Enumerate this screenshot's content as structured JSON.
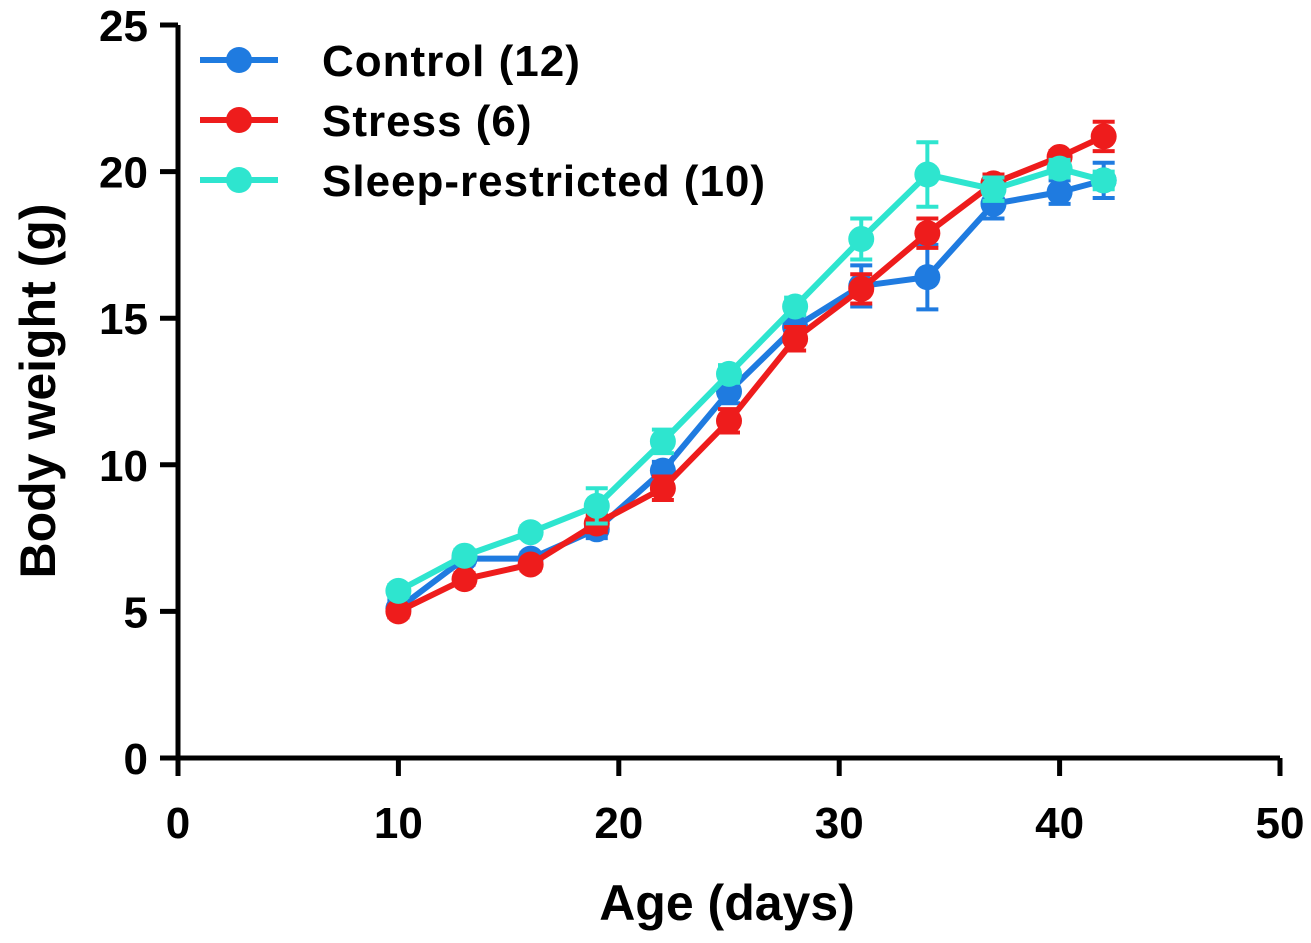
{
  "chart_data": {
    "type": "line",
    "title": "",
    "xlabel": "Age (days)",
    "ylabel": "Body weight (g)",
    "xlim": [
      0,
      50
    ],
    "ylim": [
      0,
      25
    ],
    "xticks": [
      "0",
      "10",
      "20",
      "30",
      "40",
      "50"
    ],
    "yticks": [
      "0",
      "5",
      "10",
      "15",
      "20",
      "25"
    ],
    "xtick_values": [
      0,
      10,
      20,
      30,
      40,
      50
    ],
    "ytick_values": [
      0,
      5,
      10,
      15,
      20,
      25
    ],
    "grid": false,
    "legend_position": "top-left",
    "series": [
      {
        "name": "Control (12)",
        "color": "#1f7be0",
        "marker": "circle",
        "x": [
          10,
          13,
          16,
          19,
          22,
          25,
          28,
          31,
          34,
          37,
          40,
          42
        ],
        "y": [
          5.1,
          6.8,
          6.8,
          7.8,
          9.8,
          12.5,
          14.7,
          16.1,
          16.4,
          18.9,
          19.3,
          19.7
        ],
        "err": [
          0.3,
          0.2,
          0.2,
          0.3,
          0.3,
          0.4,
          0.4,
          0.7,
          1.1,
          0.5,
          0.4,
          0.6
        ]
      },
      {
        "name": "Stress (6)",
        "color": "#ee1c1c",
        "marker": "circle",
        "x": [
          10,
          13,
          16,
          19,
          22,
          25,
          28,
          31,
          34,
          37,
          40,
          42
        ],
        "y": [
          5.0,
          6.1,
          6.6,
          8.0,
          9.2,
          11.5,
          14.3,
          16.0,
          17.9,
          19.6,
          20.5,
          21.2
        ],
        "err": [
          0.2,
          0.2,
          0.2,
          0.3,
          0.4,
          0.4,
          0.4,
          0.5,
          0.5,
          0.3,
          0.2,
          0.5
        ]
      },
      {
        "name": "Sleep-restricted (10)",
        "color": "#2ee5cf",
        "marker": "circle",
        "x": [
          10,
          13,
          16,
          19,
          22,
          25,
          28,
          31,
          34,
          37,
          40,
          42
        ],
        "y": [
          5.7,
          6.9,
          7.7,
          8.6,
          10.8,
          13.1,
          15.4,
          17.7,
          19.9,
          19.4,
          20.1,
          19.7
        ],
        "err": [
          0.2,
          0.2,
          0.2,
          0.6,
          0.4,
          0.3,
          0.3,
          0.7,
          1.1,
          0.4,
          0.3,
          0.3
        ]
      }
    ]
  }
}
